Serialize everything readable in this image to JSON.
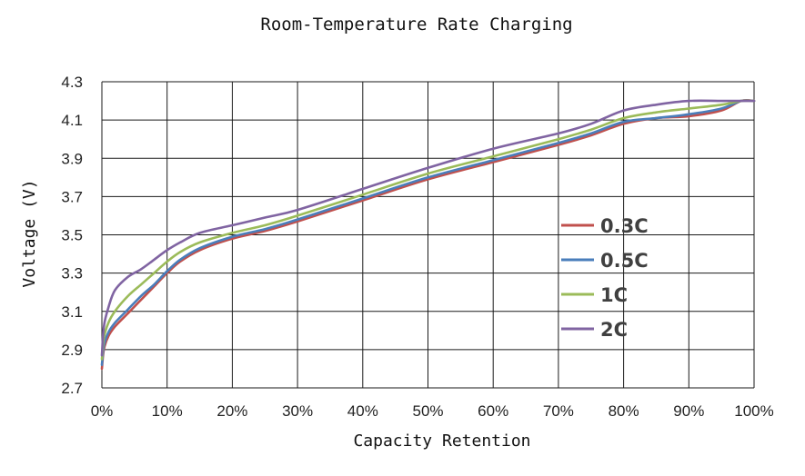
{
  "chart_data": {
    "type": "line",
    "title": "Room-Temperature Rate Charging",
    "xlabel": "Capacity Retention",
    "ylabel": "Voltage (V)",
    "xlim": [
      0,
      100
    ],
    "ylim": [
      2.7,
      4.3
    ],
    "x_ticks": [
      "0%",
      "10%",
      "20%",
      "30%",
      "40%",
      "50%",
      "60%",
      "70%",
      "80%",
      "90%",
      "100%"
    ],
    "y_ticks": [
      "2.7",
      "2.9",
      "3.1",
      "3.3",
      "3.5",
      "3.7",
      "3.9",
      "4.1",
      "4.3"
    ],
    "grid": true,
    "legend_position": "right",
    "series": [
      {
        "name": "0.3C",
        "color": "#c0504d",
        "x": [
          0,
          0.3,
          1,
          2,
          4,
          6,
          8,
          10,
          12,
          15,
          20,
          25,
          30,
          40,
          50,
          60,
          70,
          75,
          80,
          85,
          90,
          95,
          98,
          100
        ],
        "y": [
          2.8,
          2.9,
          2.97,
          3.02,
          3.09,
          3.16,
          3.23,
          3.3,
          3.36,
          3.42,
          3.48,
          3.52,
          3.57,
          3.68,
          3.79,
          3.88,
          3.97,
          4.02,
          4.08,
          4.11,
          4.12,
          4.15,
          4.2,
          4.2
        ]
      },
      {
        "name": "0.5C",
        "color": "#4a7ebb",
        "x": [
          0,
          0.3,
          1,
          2,
          4,
          6,
          8,
          10,
          12,
          15,
          20,
          25,
          30,
          40,
          50,
          60,
          70,
          75,
          80,
          85,
          90,
          95,
          98,
          100
        ],
        "y": [
          2.82,
          2.92,
          2.99,
          3.04,
          3.11,
          3.18,
          3.24,
          3.31,
          3.37,
          3.43,
          3.49,
          3.53,
          3.58,
          3.69,
          3.8,
          3.89,
          3.98,
          4.03,
          4.09,
          4.11,
          4.13,
          4.16,
          4.2,
          4.2
        ]
      },
      {
        "name": "1C",
        "color": "#9bbb59",
        "x": [
          0,
          0.3,
          1,
          2,
          4,
          6,
          8,
          10,
          12,
          15,
          20,
          25,
          30,
          40,
          50,
          60,
          70,
          75,
          80,
          85,
          90,
          95,
          98,
          100
        ],
        "y": [
          2.85,
          2.96,
          3.04,
          3.1,
          3.18,
          3.24,
          3.3,
          3.36,
          3.41,
          3.46,
          3.51,
          3.55,
          3.6,
          3.71,
          3.82,
          3.91,
          4.0,
          4.05,
          4.11,
          4.14,
          4.16,
          4.18,
          4.2,
          4.2
        ]
      },
      {
        "name": "2C",
        "color": "#8064a2",
        "x": [
          0,
          0.3,
          1,
          2,
          4,
          6,
          8,
          10,
          12,
          15,
          20,
          25,
          30,
          40,
          50,
          60,
          70,
          75,
          80,
          85,
          90,
          95,
          98,
          100
        ],
        "y": [
          2.87,
          3.02,
          3.12,
          3.21,
          3.28,
          3.32,
          3.37,
          3.42,
          3.46,
          3.51,
          3.55,
          3.59,
          3.63,
          3.74,
          3.85,
          3.95,
          4.03,
          4.08,
          4.15,
          4.18,
          4.2,
          4.2,
          4.2,
          4.2
        ]
      }
    ]
  }
}
